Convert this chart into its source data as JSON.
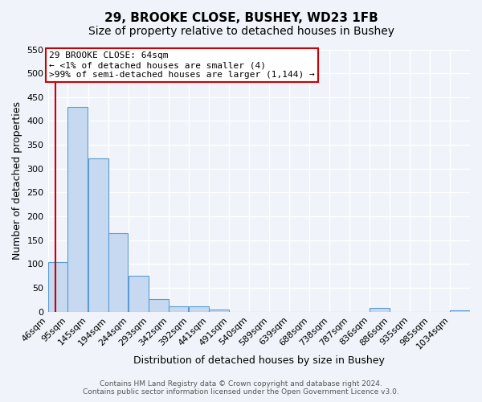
{
  "title": "29, BROOKE CLOSE, BUSHEY, WD23 1FB",
  "subtitle": "Size of property relative to detached houses in Bushey",
  "xlabel": "Distribution of detached houses by size in Bushey",
  "ylabel": "Number of detached properties",
  "bar_values": [
    105,
    430,
    322,
    165,
    75,
    26,
    12,
    12,
    5,
    0,
    0,
    0,
    0,
    0,
    0,
    0,
    8,
    0,
    0,
    0,
    3
  ],
  "bar_labels": [
    "46sqm",
    "95sqm",
    "145sqm",
    "194sqm",
    "244sqm",
    "293sqm",
    "342sqm",
    "392sqm",
    "441sqm",
    "491sqm",
    "540sqm",
    "589sqm",
    "639sqm",
    "688sqm",
    "738sqm",
    "787sqm",
    "836sqm",
    "886sqm",
    "935sqm",
    "985sqm",
    "1034sqm"
  ],
  "bin_edges": [
    46,
    95,
    145,
    194,
    244,
    293,
    342,
    392,
    441,
    491,
    540,
    589,
    639,
    688,
    738,
    787,
    836,
    886,
    935,
    985,
    1034
  ],
  "ylim": [
    0,
    550
  ],
  "yticks": [
    0,
    50,
    100,
    150,
    200,
    250,
    300,
    350,
    400,
    450,
    500,
    550
  ],
  "bar_color": "#c6d9f0",
  "bar_edge_color": "#5b9bd5",
  "annotation_box_text": "29 BROOKE CLOSE: 64sqm\n← <1% of detached houses are smaller (4)\n>99% of semi-detached houses are larger (1,144) →",
  "red_line_x": 64,
  "box_color": "#ffffff",
  "box_edge_color": "#cc0000",
  "red_line_color": "#cc0000",
  "footer_line1": "Contains HM Land Registry data © Crown copyright and database right 2024.",
  "footer_line2": "Contains public sector information licensed under the Open Government Licence v3.0.",
  "background_color": "#f0f4fa",
  "grid_color": "#ffffff",
  "title_fontsize": 11,
  "subtitle_fontsize": 10,
  "axis_label_fontsize": 9,
  "tick_fontsize": 8,
  "annotation_fontsize": 8,
  "footer_fontsize": 6.5
}
